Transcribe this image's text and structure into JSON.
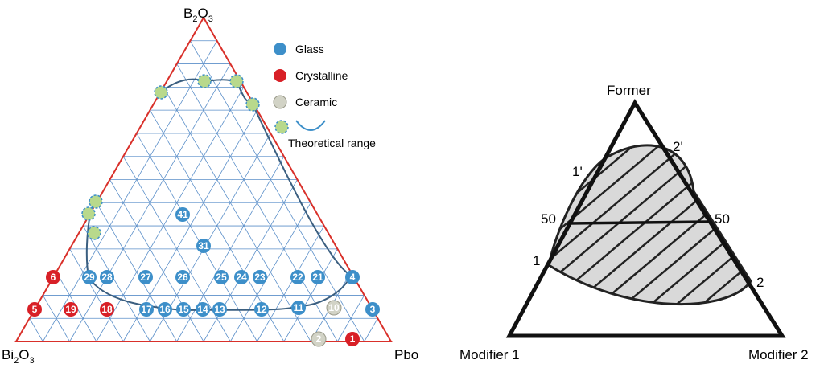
{
  "colors": {
    "frame": "#d9302a",
    "grid": "#5b8fc9",
    "glass": "#3d8fc9",
    "crystalline": "#d82027",
    "ceramic": "#d2d3c6",
    "theoretical_fill": "#b8d98c",
    "theoretical_ring": "#3d8fc9",
    "curve": "#3b5f80",
    "hatch_fill": "#d9d9d9"
  },
  "left_diagram": {
    "apex_top": {
      "main": "B",
      "sub1": "2",
      "mid": "O",
      "sub2": "3"
    },
    "apex_left": {
      "main": "Bi",
      "sub1": "2",
      "mid": "O",
      "sub2": "3"
    },
    "apex_right": "Pbo",
    "legend": {
      "glass": "Glass",
      "crystalline": "Crystalline",
      "ceramic": "Ceramic",
      "theoretical": "Theoretical range"
    },
    "points": [
      {
        "id": "1",
        "type": "crystalline"
      },
      {
        "id": "2",
        "type": "ceramic"
      },
      {
        "id": "3",
        "type": "glass"
      },
      {
        "id": "4",
        "type": "glass"
      },
      {
        "id": "5",
        "type": "crystalline"
      },
      {
        "id": "6",
        "type": "crystalline"
      },
      {
        "id": "10",
        "type": "ceramic"
      },
      {
        "id": "11",
        "type": "glass"
      },
      {
        "id": "12",
        "type": "glass"
      },
      {
        "id": "13",
        "type": "glass"
      },
      {
        "id": "14",
        "type": "glass"
      },
      {
        "id": "15",
        "type": "glass"
      },
      {
        "id": "16",
        "type": "glass"
      },
      {
        "id": "17",
        "type": "glass"
      },
      {
        "id": "18",
        "type": "crystalline"
      },
      {
        "id": "19",
        "type": "crystalline"
      },
      {
        "id": "21",
        "type": "glass"
      },
      {
        "id": "22",
        "type": "glass"
      },
      {
        "id": "23",
        "type": "glass"
      },
      {
        "id": "24",
        "type": "glass"
      },
      {
        "id": "25",
        "type": "glass"
      },
      {
        "id": "26",
        "type": "glass"
      },
      {
        "id": "27",
        "type": "glass"
      },
      {
        "id": "28",
        "type": "glass"
      },
      {
        "id": "29",
        "type": "glass"
      },
      {
        "id": "31",
        "type": "glass"
      },
      {
        "id": "41",
        "type": "glass"
      }
    ]
  },
  "right_diagram": {
    "apex_top": "Former",
    "apex_left": "Modifier 1",
    "apex_right": "Modifier 2",
    "label_50_left": "50",
    "label_50_right": "50",
    "label_1": "1",
    "label_1p": "1'",
    "label_2": "2",
    "label_2p": "2'"
  }
}
